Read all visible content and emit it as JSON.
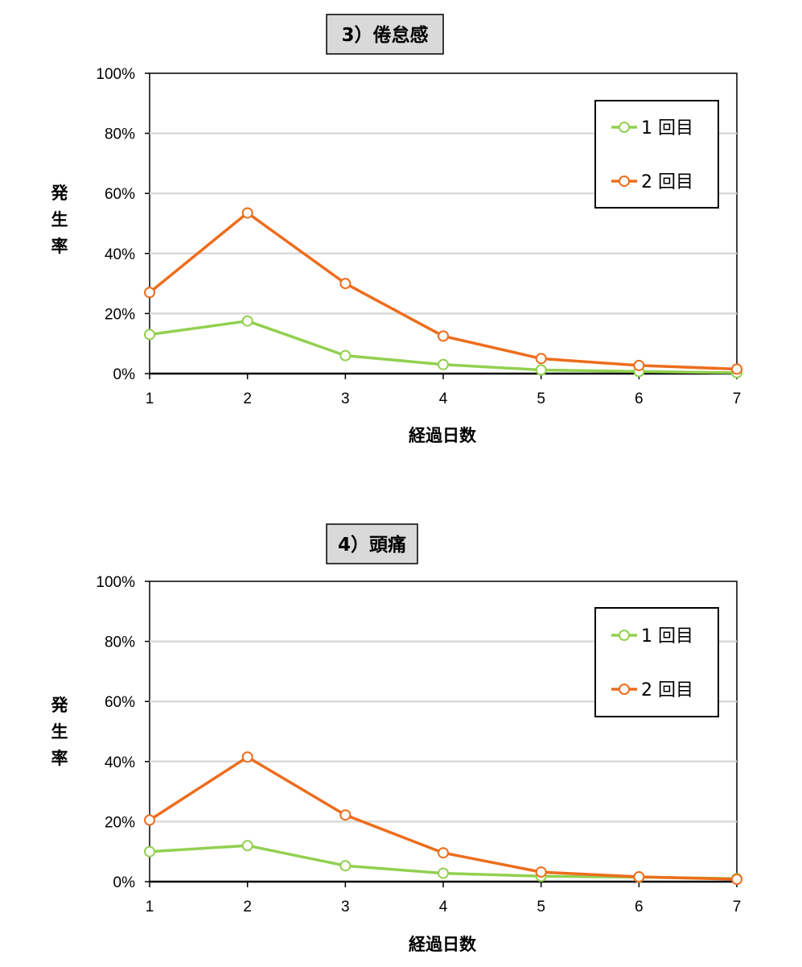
{
  "chart_data": [
    {
      "type": "line",
      "title": "3）倦怠感",
      "xlabel": "経過日数",
      "ylabel": "発生率",
      "categories": [
        "1",
        "2",
        "3",
        "4",
        "5",
        "6",
        "7"
      ],
      "y_ticks": [
        "0%",
        "20%",
        "40%",
        "60%",
        "80%",
        "100%"
      ],
      "ylim": [
        0,
        100
      ],
      "grid": true,
      "legend_position": "top-right",
      "series": [
        {
          "name": "1 回目",
          "color": "#92d050",
          "values": [
            13,
            17.5,
            6,
            3,
            1.2,
            0.7,
            0.3
          ]
        },
        {
          "name": "2 回目",
          "color": "#ed6d1c",
          "values": [
            27,
            53.5,
            30,
            12.5,
            5,
            2.7,
            1.5
          ]
        }
      ]
    },
    {
      "type": "line",
      "title": "4）頭痛",
      "xlabel": "経過日数",
      "ylabel": "発生率",
      "categories": [
        "1",
        "2",
        "3",
        "4",
        "5",
        "6",
        "7"
      ],
      "y_ticks": [
        "0%",
        "20%",
        "40%",
        "60%",
        "80%",
        "100%"
      ],
      "ylim": [
        0,
        100
      ],
      "grid": true,
      "legend_position": "top-right",
      "series": [
        {
          "name": "1 回目",
          "color": "#92d050",
          "values": [
            10,
            12,
            5.3,
            2.8,
            1.8,
            1.5,
            1
          ]
        },
        {
          "name": "2 回目",
          "color": "#ed6d1c",
          "values": [
            20.5,
            41.5,
            22.2,
            9.6,
            3.2,
            1.6,
            0.8
          ]
        }
      ]
    }
  ]
}
